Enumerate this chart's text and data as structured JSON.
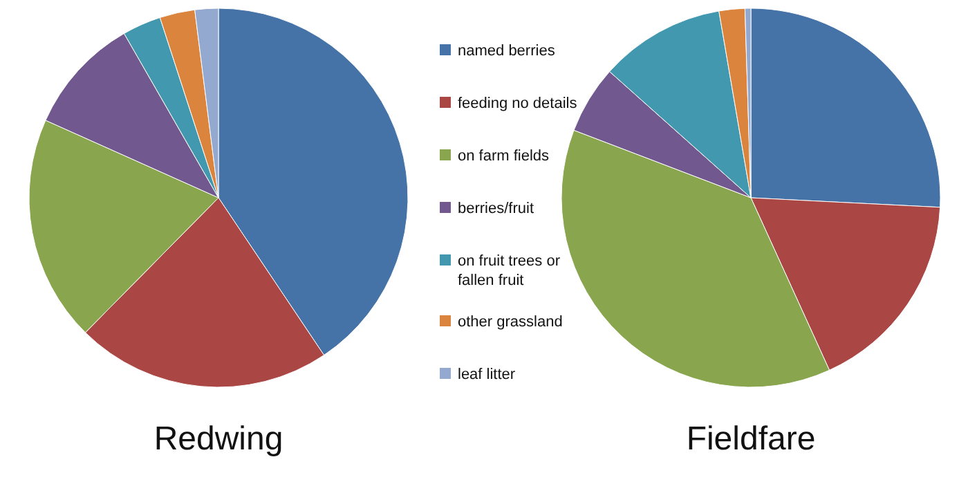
{
  "chart_data": [
    {
      "type": "pie",
      "title": "Redwing",
      "legend": "right",
      "categories": [
        "named berries",
        "feeding no details",
        "on farm fields",
        "berries/fruit",
        "on fruit trees or fallen fruit",
        "other grassland",
        "leaf litter"
      ],
      "values": [
        40.6,
        21.8,
        19.3,
        10.0,
        3.3,
        3.0,
        2.0
      ],
      "colors": [
        "#4572a7",
        "#aa4643",
        "#89a54e",
        "#71588f",
        "#4198af",
        "#db843d",
        "#93a9cf"
      ]
    },
    {
      "type": "pie",
      "title": "Fieldfare",
      "categories": [
        null,
        null,
        null,
        null,
        null,
        null,
        null
      ],
      "values": [
        25.8,
        17.4,
        37.6,
        5.8,
        10.7,
        2.2,
        0.5
      ],
      "colors": [
        "#4572a7",
        "#aa4643",
        "#89a54e",
        "#71588f",
        "#4198af",
        "#db843d",
        "#93a9cf"
      ]
    }
  ]
}
